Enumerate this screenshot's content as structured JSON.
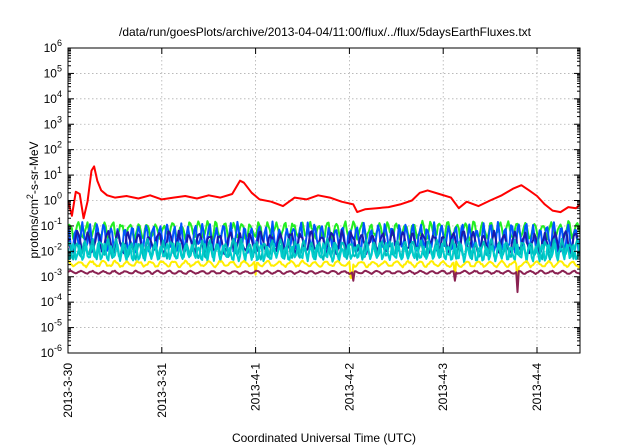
{
  "chart_data": {
    "type": "line",
    "title": "/data/run/goesPlots/archive/2013-04-04/11:00/flux/../flux/5daysEarthFluxes.txt",
    "xlabel": "Coordinated Universal Time (UTC)",
    "ylabel": "protons/cm2-s-sr-MeV",
    "ylabel_parts": {
      "base": "protons/cm",
      "sup": "2",
      "rest": "-s-sr-MeV"
    },
    "yscale": "log",
    "ylim": [
      1e-06,
      1000000.0
    ],
    "y_ticks": [
      {
        "value": 1e-06,
        "base": "10",
        "exp": "-6"
      },
      {
        "value": 1e-05,
        "base": "10",
        "exp": "-5"
      },
      {
        "value": 0.0001,
        "base": "10",
        "exp": "-4"
      },
      {
        "value": 0.001,
        "base": "10",
        "exp": "-3"
      },
      {
        "value": 0.01,
        "base": "10",
        "exp": "-2"
      },
      {
        "value": 0.1,
        "base": "10",
        "exp": "-1"
      },
      {
        "value": 1,
        "base": "10",
        "exp": "0"
      },
      {
        "value": 10,
        "base": "10",
        "exp": "1"
      },
      {
        "value": 100,
        "base": "10",
        "exp": "2"
      },
      {
        "value": 1000,
        "base": "10",
        "exp": "3"
      },
      {
        "value": 10000,
        "base": "10",
        "exp": "4"
      },
      {
        "value": 100000,
        "base": "10",
        "exp": "5"
      },
      {
        "value": 1000000,
        "base": "10",
        "exp": "6"
      }
    ],
    "xlim": [
      "2013-03-30T00:00",
      "2013-04-04T11:00"
    ],
    "x_ticks": [
      "2013-3-30",
      "2013-3-31",
      "2013-4-1",
      "2013-4-2",
      "2013-4-3",
      "2013-4-4"
    ],
    "grid": true,
    "series": [
      {
        "color": "#ff0000",
        "points": [
          [
            "2013-03-30T00:00",
            1.0
          ],
          [
            "2013-03-30T01:00",
            0.25
          ],
          [
            "2013-03-30T02:00",
            2.2
          ],
          [
            "2013-03-30T03:00",
            1.8
          ],
          [
            "2013-03-30T04:00",
            0.2
          ],
          [
            "2013-03-30T05:00",
            0.9
          ],
          [
            "2013-03-30T06:00",
            15
          ],
          [
            "2013-03-30T06:40",
            22
          ],
          [
            "2013-03-30T07:30",
            6
          ],
          [
            "2013-03-30T08:30",
            2.5
          ],
          [
            "2013-03-30T10:00",
            1.6
          ],
          [
            "2013-03-30T12:00",
            1.3
          ],
          [
            "2013-03-30T15:00",
            1.5
          ],
          [
            "2013-03-30T18:00",
            1.2
          ],
          [
            "2013-03-30T21:00",
            1.6
          ],
          [
            "2013-03-31T00:00",
            1.1
          ],
          [
            "2013-03-31T03:00",
            1.3
          ],
          [
            "2013-03-31T06:00",
            1.5
          ],
          [
            "2013-03-31T09:00",
            1.2
          ],
          [
            "2013-03-31T12:00",
            1.6
          ],
          [
            "2013-03-31T15:00",
            1.3
          ],
          [
            "2013-03-31T18:00",
            1.8
          ],
          [
            "2013-03-31T20:00",
            6
          ],
          [
            "2013-03-31T21:00",
            5
          ],
          [
            "2013-03-31T23:00",
            2.0
          ],
          [
            "2013-04-01T01:00",
            1.1
          ],
          [
            "2013-04-01T04:00",
            0.9
          ],
          [
            "2013-04-01T07:00",
            0.6
          ],
          [
            "2013-04-01T10:00",
            1.3
          ],
          [
            "2013-04-01T13:00",
            1.1
          ],
          [
            "2013-04-01T16:00",
            1.6
          ],
          [
            "2013-04-01T19:00",
            1.3
          ],
          [
            "2013-04-01T22:00",
            0.9
          ],
          [
            "2013-04-02T01:00",
            0.7
          ],
          [
            "2013-04-02T02:00",
            0.35
          ],
          [
            "2013-04-02T04:00",
            0.45
          ],
          [
            "2013-04-02T07:00",
            0.5
          ],
          [
            "2013-04-02T10:00",
            0.55
          ],
          [
            "2013-04-02T13:00",
            0.7
          ],
          [
            "2013-04-02T16:00",
            1.0
          ],
          [
            "2013-04-02T18:00",
            2.0
          ],
          [
            "2013-04-02T20:00",
            2.5
          ],
          [
            "2013-04-02T23:00",
            1.8
          ],
          [
            "2013-04-03T02:00",
            1.3
          ],
          [
            "2013-04-03T04:00",
            0.5
          ],
          [
            "2013-04-03T06:00",
            0.9
          ],
          [
            "2013-04-03T09:00",
            0.6
          ],
          [
            "2013-04-03T12:00",
            1.0
          ],
          [
            "2013-04-03T15:00",
            1.6
          ],
          [
            "2013-04-03T18:00",
            3.0
          ],
          [
            "2013-04-03T20:00",
            4.0
          ],
          [
            "2013-04-03T22:00",
            2.5
          ],
          [
            "2013-04-04T00:00",
            1.5
          ],
          [
            "2013-04-04T02:00",
            0.7
          ],
          [
            "2013-04-04T04:00",
            0.4
          ],
          [
            "2013-04-04T06:00",
            0.35
          ],
          [
            "2013-04-04T08:00",
            0.55
          ],
          [
            "2013-04-04T10:00",
            0.5
          ],
          [
            "2013-04-04T11:00",
            0.7
          ]
        ]
      },
      {
        "color": "#22ee22",
        "base": 0.065,
        "amp": 0.28,
        "period_h": 2.2,
        "phase": 0.3
      },
      {
        "color": "#0055ff",
        "base": 0.035,
        "amp": 0.45,
        "period_h": 1.8,
        "phase": 1.1
      },
      {
        "color": "#1a1aaa",
        "base": 0.022,
        "amp": 0.35,
        "period_h": 2.6,
        "phase": 2.0
      },
      {
        "color": "#00bbbb",
        "base": 0.012,
        "amp": 0.3,
        "period_h": 2.0,
        "phase": 0.7
      },
      {
        "color": "#00cccc",
        "base": 0.009,
        "amp": 0.28,
        "period_h": 1.6,
        "phase": 2.6
      },
      {
        "color": "#ffee00",
        "base": 0.0032,
        "amp": 0.1,
        "period_h": 3.0,
        "phase": 1.5,
        "dips": [
          [
            "2013-04-01T00:00",
            0.0012
          ],
          [
            "2013-04-02T00:30",
            0.0009
          ],
          [
            "2013-04-03T03:00",
            0.0009
          ],
          [
            "2013-04-03T19:00",
            0.0005
          ]
        ]
      },
      {
        "color": "#8b2252",
        "base": 0.0015,
        "amp": 0.05,
        "period_h": 2.8,
        "phase": 0.2,
        "dips": [
          [
            "2013-04-02T01:00",
            0.0007
          ],
          [
            "2013-04-03T03:00",
            0.0007
          ],
          [
            "2013-04-03T19:00",
            0.00025
          ]
        ]
      }
    ]
  }
}
